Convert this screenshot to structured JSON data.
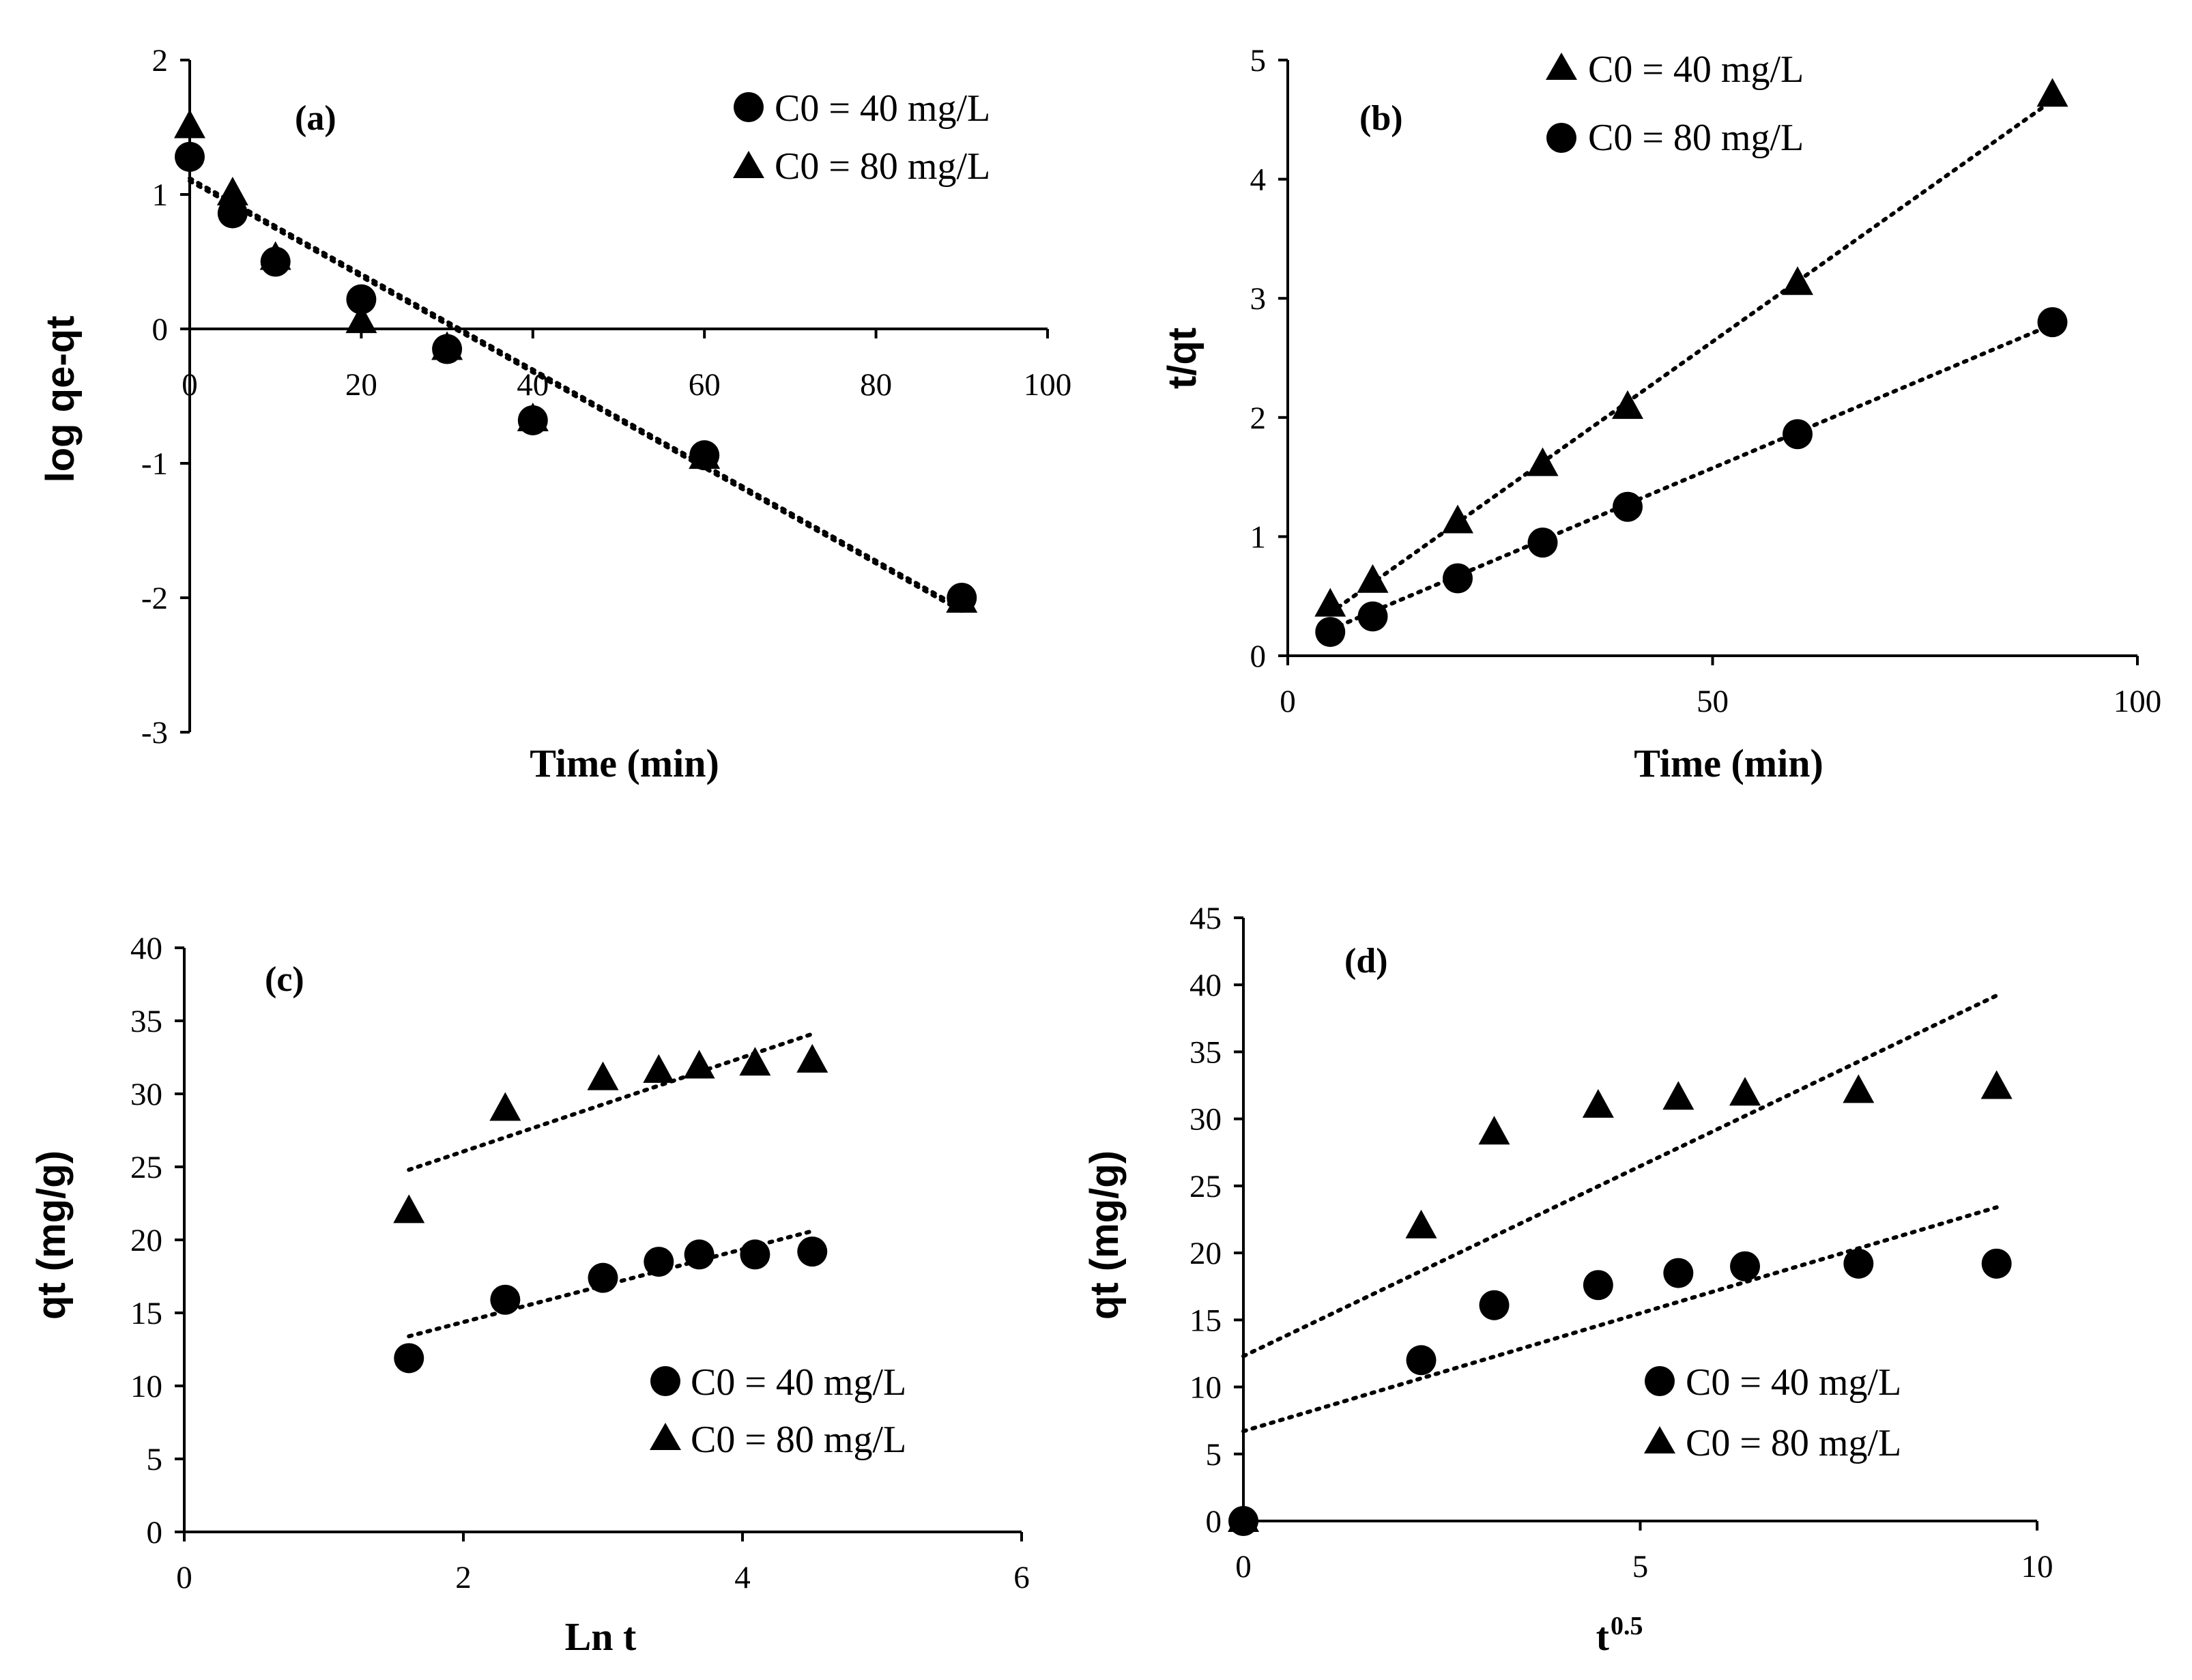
{
  "chart_data": [
    {
      "id": "a",
      "type": "scatter",
      "panel_label": "(a)",
      "xlabel": "Time (min)",
      "ylabel": "log qe-qt",
      "xlim": [
        0,
        100
      ],
      "ylim": [
        -3,
        2
      ],
      "xticks": [
        "0",
        "20",
        "40",
        "60",
        "80",
        "100"
      ],
      "yticks": [
        "-3",
        "-2",
        "-1",
        "0",
        "1",
        "2"
      ],
      "xtick_values": [
        0,
        20,
        40,
        60,
        80,
        100
      ],
      "ytick_values": [
        -3,
        -2,
        -1,
        0,
        1,
        2
      ],
      "series": [
        {
          "name": "C0 = 40 mg/L",
          "marker": "circle",
          "x": [
            0,
            5,
            10,
            20,
            30,
            40,
            60,
            90
          ],
          "y": [
            1.28,
            0.86,
            0.5,
            0.22,
            -0.15,
            -0.68,
            -0.94,
            -2.0
          ]
        },
        {
          "name": "C0 = 80 mg/L",
          "marker": "triangle",
          "x": [
            0,
            5,
            10,
            20,
            30,
            40,
            60,
            90
          ],
          "y": [
            1.5,
            1.0,
            0.52,
            0.05,
            -0.15,
            -0.68,
            -0.96,
            -2.03
          ]
        }
      ],
      "trendlines": [
        {
          "x": [
            0,
            90
          ],
          "y": [
            1.1,
            -2.1
          ]
        },
        {
          "x": [
            0,
            90
          ],
          "y": [
            1.12,
            -2.08
          ]
        }
      ]
    },
    {
      "id": "b",
      "type": "scatter",
      "panel_label": "(b)",
      "xlabel": "Time (min)",
      "ylabel": "t/qt",
      "xlim": [
        0,
        100
      ],
      "ylim": [
        0,
        5
      ],
      "xticks": [
        "0",
        "50",
        "100"
      ],
      "yticks": [
        "0",
        "1",
        "2",
        "3",
        "4",
        "5"
      ],
      "xtick_values": [
        0,
        50,
        100
      ],
      "ytick_values": [
        0,
        1,
        2,
        3,
        4,
        5
      ],
      "series": [
        {
          "name": "C0 = 40 mg/L",
          "marker": "triangle",
          "x": [
            5,
            10,
            20,
            30,
            40,
            60,
            90
          ],
          "y": [
            0.42,
            0.62,
            1.12,
            1.6,
            2.08,
            3.12,
            4.7
          ]
        },
        {
          "name": "C0 = 80 mg/L",
          "marker": "circle",
          "x": [
            5,
            10,
            20,
            30,
            40,
            60,
            90
          ],
          "y": [
            0.2,
            0.33,
            0.65,
            0.95,
            1.25,
            1.86,
            2.8
          ]
        }
      ],
      "trendlines": [
        {
          "x": [
            5,
            90
          ],
          "y": [
            0.36,
            4.66
          ]
        },
        {
          "x": [
            5,
            90
          ],
          "y": [
            0.22,
            2.78
          ]
        }
      ]
    },
    {
      "id": "c",
      "type": "scatter",
      "panel_label": "(c)",
      "xlabel": "Ln t",
      "ylabel": "qt (mg/g)",
      "xlim": [
        0,
        6
      ],
      "ylim": [
        0,
        40
      ],
      "xticks": [
        "0",
        "2",
        "4",
        "6"
      ],
      "yticks": [
        "0",
        "5",
        "10",
        "15",
        "20",
        "25",
        "30",
        "35",
        "40"
      ],
      "xtick_values": [
        0,
        2,
        4,
        6
      ],
      "ytick_values": [
        0,
        5,
        10,
        15,
        20,
        25,
        30,
        35,
        40
      ],
      "series": [
        {
          "name": "C0 = 40 mg/L",
          "marker": "circle",
          "x": [
            1.61,
            2.3,
            3.0,
            3.4,
            3.69,
            4.09,
            4.5
          ],
          "y": [
            11.9,
            15.9,
            17.4,
            18.5,
            19.0,
            19.0,
            19.2
          ]
        },
        {
          "name": "C0 = 80 mg/L",
          "marker": "triangle",
          "x": [
            1.61,
            2.3,
            3.0,
            3.4,
            3.69,
            4.09,
            4.5
          ],
          "y": [
            21.9,
            28.9,
            31.0,
            31.5,
            31.8,
            32.0,
            32.2
          ]
        }
      ],
      "trendlines": [
        {
          "x": [
            1.61,
            4.5
          ],
          "y": [
            13.4,
            20.6
          ]
        },
        {
          "x": [
            1.61,
            4.5
          ],
          "y": [
            24.8,
            34.1
          ]
        }
      ]
    },
    {
      "id": "d",
      "type": "scatter",
      "panel_label": "(d)",
      "xlabel": "t",
      "xlabel_sup": "0.5",
      "ylabel": "qt (mg/g)",
      "xlim": [
        0,
        10
      ],
      "ylim": [
        0,
        45
      ],
      "xticks": [
        "0",
        "5",
        "10"
      ],
      "yticks": [
        "0",
        "5",
        "10",
        "15",
        "20",
        "25",
        "30",
        "35",
        "40",
        "45"
      ],
      "xtick_values": [
        0,
        5,
        10
      ],
      "ytick_values": [
        0,
        5,
        10,
        15,
        20,
        25,
        30,
        35,
        40,
        45
      ],
      "series": [
        {
          "name": "C0 = 40 mg/L",
          "marker": "circle",
          "x": [
            0,
            2.24,
            3.16,
            4.47,
            5.48,
            6.32,
            7.75,
            9.49
          ],
          "y": [
            0,
            12.0,
            16.1,
            17.6,
            18.5,
            19.0,
            19.2,
            19.2
          ]
        },
        {
          "name": "C0 = 80 mg/L",
          "marker": "triangle",
          "x": [
            0,
            2.24,
            3.16,
            4.47,
            5.48,
            6.32,
            7.75,
            9.49
          ],
          "y": [
            0,
            21.9,
            28.9,
            30.9,
            31.5,
            31.8,
            32.0,
            32.3
          ]
        }
      ],
      "trendlines": [
        {
          "x": [
            0,
            9.49
          ],
          "y": [
            6.7,
            23.4
          ]
        },
        {
          "x": [
            0,
            9.49
          ],
          "y": [
            12.3,
            39.2
          ]
        }
      ]
    }
  ]
}
